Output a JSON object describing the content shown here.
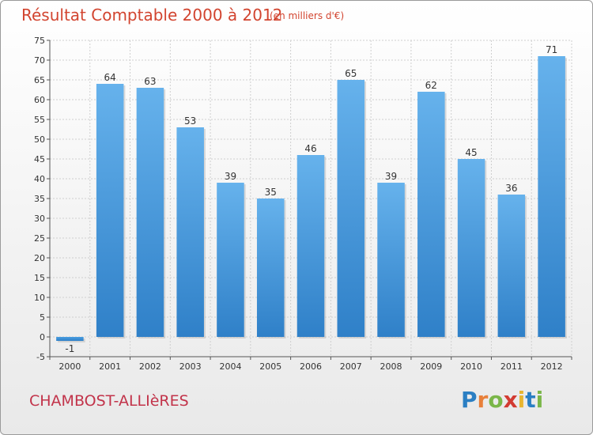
{
  "chart_data": {
    "type": "bar",
    "title": "Résultat Comptable 2000 à 2012",
    "subtitle": "(en milliers d'€)",
    "categories": [
      "2000",
      "2001",
      "2002",
      "2003",
      "2004",
      "2005",
      "2006",
      "2007",
      "2008",
      "2009",
      "2010",
      "2011",
      "2012"
    ],
    "values": [
      -1,
      64,
      63,
      53,
      39,
      35,
      46,
      65,
      39,
      62,
      45,
      36,
      71
    ],
    "ylim": [
      -5,
      75
    ],
    "ytick_step": 5,
    "xlabel": "",
    "ylabel": "",
    "grid": true,
    "bar_color": "#3a8fd6",
    "bar_color_light": "#66b2ec"
  },
  "footer": {
    "place": "CHAMBOST-ALLIèRES",
    "logo_letters": [
      "P",
      "r",
      "o",
      "x",
      "i",
      "t",
      "i"
    ]
  }
}
